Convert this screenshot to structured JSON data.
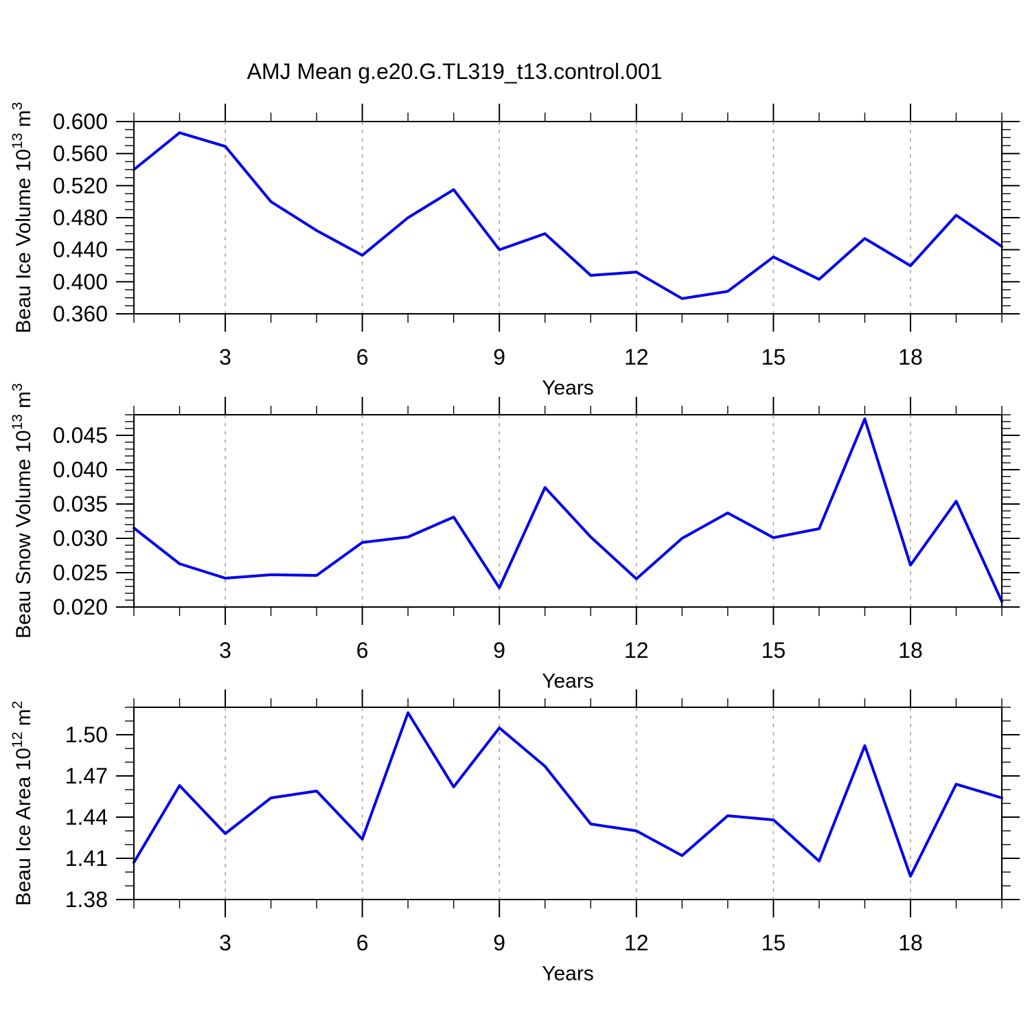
{
  "title": "AMJ Mean g.e20.G.TL319_t13.control.001",
  "style": {
    "background": "#ffffff",
    "line_color": "#0000ee",
    "axis_color": "#000000",
    "grid_color": "#a3a3a3",
    "text_color": "#000000"
  },
  "chart_data": [
    {
      "type": "line",
      "panel": "beau-ice-volume",
      "title": "",
      "ylabel": "Beau Ice Volume 10^13 m^3",
      "ylabel_parts": [
        {
          "t": "Beau Ice Volume 10"
        },
        {
          "t": "13",
          "sup": true
        },
        {
          "t": " m"
        },
        {
          "t": "3",
          "sup": true
        }
      ],
      "xlabel": "Years",
      "x": [
        1,
        2,
        3,
        4,
        5,
        6,
        7,
        8,
        9,
        10,
        11,
        12,
        13,
        14,
        15,
        16,
        17,
        18,
        19,
        20
      ],
      "values": [
        0.54,
        0.586,
        0.569,
        0.5,
        0.464,
        0.433,
        0.48,
        0.515,
        0.44,
        0.46,
        0.408,
        0.412,
        0.379,
        0.388,
        0.431,
        0.403,
        0.454,
        0.42,
        0.483,
        0.444
      ],
      "xlim": [
        1,
        20
      ],
      "ylim": [
        0.36,
        0.6
      ],
      "yticks": [
        {
          "value": 0.6,
          "label": "0.600"
        },
        {
          "value": 0.56,
          "label": "0.560"
        },
        {
          "value": 0.52,
          "label": "0.520"
        },
        {
          "value": 0.48,
          "label": "0.480"
        },
        {
          "value": 0.44,
          "label": "0.440"
        },
        {
          "value": 0.4,
          "label": "0.400"
        },
        {
          "value": 0.36,
          "label": "0.360"
        }
      ],
      "ytick_minor_step": 0.01,
      "xticks_major": [
        3,
        6,
        9,
        12,
        15,
        18
      ],
      "grid": "vertical-dashed",
      "legend": "none"
    },
    {
      "type": "line",
      "panel": "beau-snow-volume",
      "title": "",
      "ylabel": "Beau Snow Volume 10^13 m^3",
      "ylabel_parts": [
        {
          "t": "Beau Snow Volume 10"
        },
        {
          "t": "13",
          "sup": true
        },
        {
          "t": " m"
        },
        {
          "t": "3",
          "sup": true
        }
      ],
      "xlabel": "Years",
      "x": [
        1,
        2,
        3,
        4,
        5,
        6,
        7,
        8,
        9,
        10,
        11,
        12,
        13,
        14,
        15,
        16,
        17,
        18,
        19,
        20
      ],
      "values": [
        0.0315,
        0.0263,
        0.0242,
        0.0247,
        0.0246,
        0.0294,
        0.0302,
        0.0331,
        0.0228,
        0.0374,
        0.0302,
        0.0241,
        0.03,
        0.0337,
        0.0301,
        0.0314,
        0.0474,
        0.0261,
        0.0354,
        0.0208
      ],
      "xlim": [
        1,
        20
      ],
      "ylim": [
        0.02,
        0.048
      ],
      "yticks": [
        {
          "value": 0.045,
          "label": "0.045"
        },
        {
          "value": 0.04,
          "label": "0.040"
        },
        {
          "value": 0.035,
          "label": "0.035"
        },
        {
          "value": 0.03,
          "label": "0.030"
        },
        {
          "value": 0.025,
          "label": "0.025"
        },
        {
          "value": 0.02,
          "label": "0.020"
        }
      ],
      "ytick_minor_step": 0.001,
      "xticks_major": [
        3,
        6,
        9,
        12,
        15,
        18
      ],
      "grid": "vertical-dashed",
      "legend": "none"
    },
    {
      "type": "line",
      "panel": "beau-ice-area",
      "title": "",
      "ylabel": "Beau Ice Area 10^12 m^2",
      "ylabel_parts": [
        {
          "t": "Beau Ice Area 10"
        },
        {
          "t": "12",
          "sup": true
        },
        {
          "t": " m"
        },
        {
          "t": "2",
          "sup": true
        }
      ],
      "xlabel": "Years",
      "x": [
        1,
        2,
        3,
        4,
        5,
        6,
        7,
        8,
        9,
        10,
        11,
        12,
        13,
        14,
        15,
        16,
        17,
        18,
        19,
        20
      ],
      "values": [
        1.407,
        1.463,
        1.428,
        1.454,
        1.459,
        1.424,
        1.516,
        1.462,
        1.505,
        1.477,
        1.435,
        1.43,
        1.412,
        1.441,
        1.438,
        1.408,
        1.492,
        1.397,
        1.464,
        1.454
      ],
      "xlim": [
        1,
        20
      ],
      "ylim": [
        1.38,
        1.52
      ],
      "yticks": [
        {
          "value": 1.5,
          "label": "1.50"
        },
        {
          "value": 1.47,
          "label": "1.47"
        },
        {
          "value": 1.44,
          "label": "1.44"
        },
        {
          "value": 1.41,
          "label": "1.41"
        },
        {
          "value": 1.38,
          "label": "1.38"
        }
      ],
      "ytick_minor_step": 0.01,
      "xticks_major": [
        3,
        6,
        9,
        12,
        15,
        18
      ],
      "grid": "vertical-dashed",
      "legend": "none"
    }
  ]
}
